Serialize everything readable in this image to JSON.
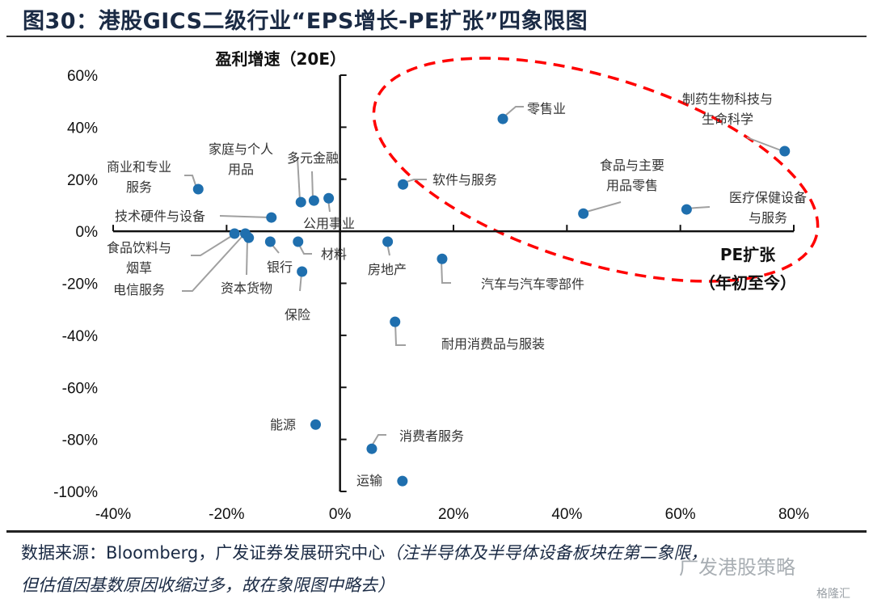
{
  "title": "图30：港股GICS二级行业“EPS增长-PE扩张”四象限图",
  "source": {
    "prefix": "数据来源：Bloomberg，广发证券发展研究中心",
    "note_line1": "（注半导体及半导体设备板块在第二象限，",
    "note_line2": "但估值因基数原因收缩过多，故在象限图中略去）"
  },
  "watermark": {
    "text": "广发港股策略",
    "logo_text": "格隆汇"
  },
  "colors": {
    "point": "#1f6fae",
    "ellipse": "#ff0000",
    "axis": "#111111",
    "leader": "#a0a0a0"
  },
  "chart_data": {
    "type": "scatter",
    "title": "图30：港股GICS二级行业“EPS增长-PE扩张”四象限图",
    "xlabel": "PE扩张（年初至今）",
    "xlabel_line1": "PE扩张",
    "xlabel_line2": "（年初至今）",
    "ylabel": "盈利增速（20E）",
    "xlim": [
      -40,
      80
    ],
    "ylim": [
      -100,
      60
    ],
    "x_ticks": [
      -40,
      -20,
      0,
      20,
      40,
      60,
      80
    ],
    "y_ticks": [
      60,
      40,
      20,
      0,
      -20,
      -40,
      -60,
      -80,
      -100
    ],
    "x_tick_labels": [
      "-40%",
      "-20%",
      "0%",
      "20%",
      "40%",
      "60%",
      "80%"
    ],
    "y_tick_labels": [
      "60%",
      "40%",
      "20%",
      "0%",
      "-20%",
      "-40%",
      "-60%",
      "-80%",
      "-100%"
    ],
    "grid": false,
    "annotation": "red dashed ellipse around first-quadrant industries",
    "points": [
      {
        "label": "零售业",
        "x": 28.7,
        "y": 43.2
      },
      {
        "label": "软件与服务",
        "x": 11.1,
        "y": 18.0
      },
      {
        "label": "食品与主要用品零售",
        "x": 42.9,
        "y": 6.8
      },
      {
        "label": "医疗保健设备与服务",
        "x": 61.1,
        "y": 8.4
      },
      {
        "label": "制药生物科技与生命科学",
        "x": 78.4,
        "y": 30.8
      },
      {
        "label": "商业和专业服务",
        "x": -25.0,
        "y": 16.2
      },
      {
        "label": "技术硬件与设备",
        "x": -12.1,
        "y": 5.3
      },
      {
        "label": "家庭与个人用品",
        "x": -6.9,
        "y": 11.2
      },
      {
        "label": "多元金融",
        "x": -4.6,
        "y": 11.8
      },
      {
        "label": "公用事业",
        "x": -2.0,
        "y": 12.7
      },
      {
        "label": "食品饮料与烟草",
        "x": -18.6,
        "y": -0.9
      },
      {
        "label": "电信服务",
        "x": -16.7,
        "y": -0.9
      },
      {
        "label": "资本货物",
        "x": -16.1,
        "y": -2.5
      },
      {
        "label": "银行",
        "x": -12.3,
        "y": -4.0
      },
      {
        "label": "材料",
        "x": -7.4,
        "y": -4.0
      },
      {
        "label": "保险",
        "x": -6.7,
        "y": -15.5
      },
      {
        "label": "房地产",
        "x": 8.4,
        "y": -4.0
      },
      {
        "label": "汽车与汽车零部件",
        "x": 18.0,
        "y": -10.6
      },
      {
        "label": "耐用消费品与服装",
        "x": 9.7,
        "y": -34.8
      },
      {
        "label": "能源",
        "x": -4.3,
        "y": -74.3
      },
      {
        "label": "消费者服务",
        "x": 5.6,
        "y": -83.6
      },
      {
        "label": "运输",
        "x": 11.0,
        "y": -96.0
      }
    ],
    "point_label_lines": {
      "商业和专业服务": [
        "商业和专业",
        "服务"
      ],
      "家庭与个人用品": [
        "家庭与个人",
        "用品"
      ],
      "食品饮料与烟草": [
        "食品饮料与",
        "烟草"
      ],
      "食品与主要用品零售": [
        "食品与主要",
        "用品零售"
      ],
      "医疗保健设备与服务": [
        "医疗保健设备",
        "与服务"
      ],
      "制药生物科技与生命科学": [
        "制药生物科技与",
        "生命科学"
      ]
    }
  }
}
